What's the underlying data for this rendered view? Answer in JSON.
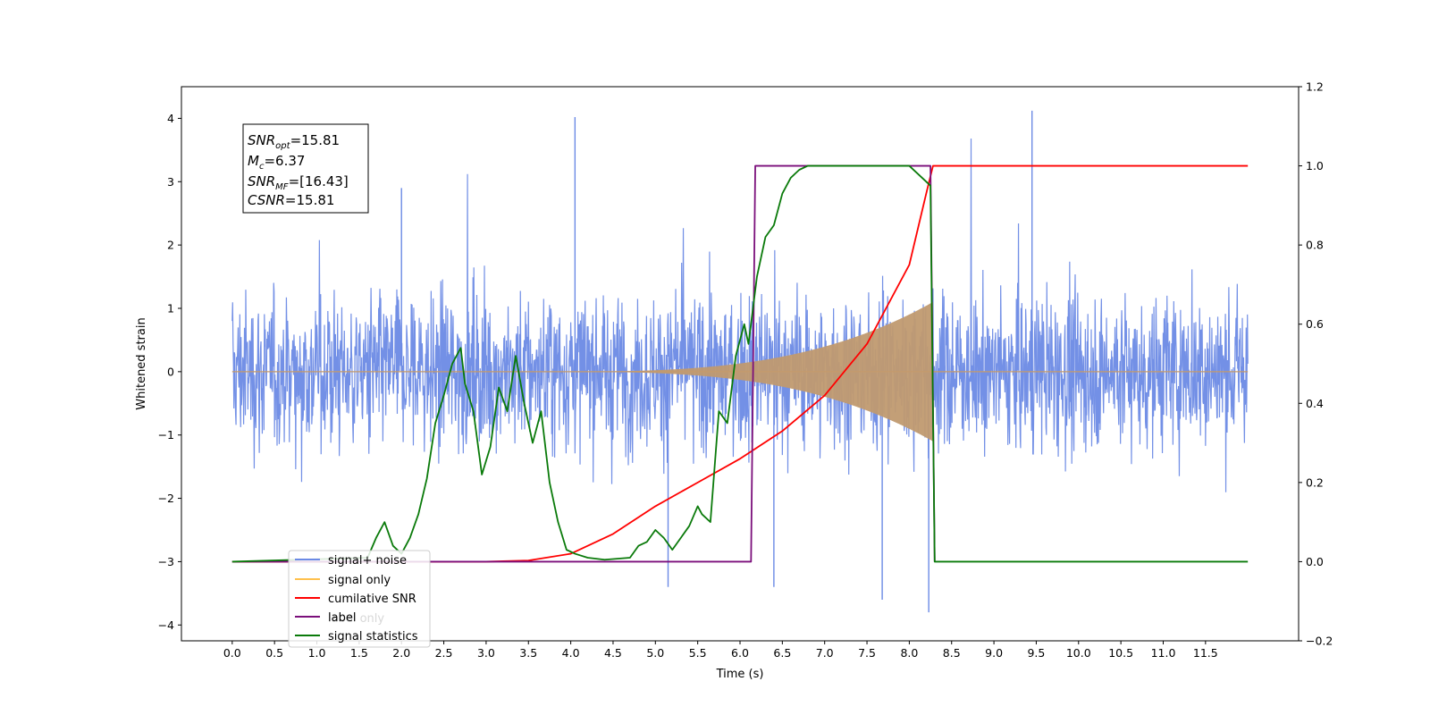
{
  "chart_data": {
    "type": "line",
    "xlabel": "Time (s)",
    "ylabel": "Whitened strain",
    "xlim": [
      -0.6,
      12.6
    ],
    "ylim_left": [
      -4.25,
      4.5
    ],
    "ylim_right": [
      -0.2,
      1.2
    ],
    "x_ticks": [
      "0.0",
      "0.5",
      "1.0",
      "1.5",
      "2.0",
      "2.5",
      "3.0",
      "3.5",
      "4.0",
      "4.5",
      "5.0",
      "5.5",
      "6.0",
      "6.5",
      "7.0",
      "7.5",
      "8.0",
      "8.5",
      "9.0",
      "9.5",
      "10.0",
      "10.5",
      "11.0",
      "11.5"
    ],
    "y_ticks_left": [
      "4",
      "3",
      "2",
      "1",
      "0",
      "−1",
      "−2",
      "−3",
      "−4"
    ],
    "y_ticks_right": [
      "1.2",
      "1.0",
      "0.8",
      "0.6",
      "0.4",
      "0.2",
      "0.0",
      "−0.2"
    ],
    "info_box": {
      "snr_opt": {
        "base": "SNR",
        "sub": "opt",
        "value": "=15.81"
      },
      "mc": {
        "base": "M",
        "sub": "c",
        "value": "=6.37"
      },
      "snr_mf": {
        "base": "SNR",
        "sub": "MF",
        "value": "=[16.43]"
      },
      "csnr": {
        "base": "CSNR",
        "value": "=15.81"
      }
    },
    "legend": {
      "placement": "lower-left",
      "entries": [
        "signal+ noise",
        "signal only",
        "cumilative SNR",
        "label",
        "signal statistics"
      ],
      "hidden_text": "label only"
    },
    "series": [
      {
        "name": "signal+ noise",
        "axis": "left",
        "color": "#6b8ae5",
        "kind": "noise",
        "x_range": [
          0.0,
          12.0
        ],
        "amplitude": 2.3,
        "peaks": [
          4.12,
          -3.8
        ]
      },
      {
        "name": "signal only",
        "axis": "left",
        "color": "#c49a6c",
        "kind": "chirp",
        "start": 3.6,
        "end": 8.28,
        "peak_amplitude": 1.1
      },
      {
        "name": "cumilative SNR",
        "axis": "right",
        "color": "#ff0000",
        "x": [
          0.0,
          3.0,
          3.5,
          4.0,
          4.5,
          5.0,
          5.5,
          6.0,
          6.5,
          7.0,
          7.5,
          8.0,
          8.2,
          8.28,
          12.0
        ],
        "y": [
          0.0,
          0.0,
          0.003,
          0.02,
          0.07,
          0.14,
          0.2,
          0.26,
          0.33,
          0.42,
          0.55,
          0.75,
          0.93,
          1.0,
          1.0
        ]
      },
      {
        "name": "label",
        "axis": "right",
        "color": "#7b0f7b",
        "x": [
          0.0,
          6.13,
          6.18,
          8.25,
          8.3,
          8.3
        ],
        "y": [
          0.0,
          0.0,
          1.0,
          1.0,
          0.0,
          0.0
        ]
      },
      {
        "name": "signal statistics",
        "axis": "right",
        "color": "#0a7a0a",
        "x": [
          0.0,
          1.6,
          1.7,
          1.8,
          1.9,
          2.0,
          2.1,
          2.2,
          2.3,
          2.4,
          2.5,
          2.6,
          2.7,
          2.75,
          2.85,
          2.95,
          3.05,
          3.15,
          3.25,
          3.35,
          3.45,
          3.55,
          3.65,
          3.75,
          3.85,
          3.95,
          4.05,
          4.2,
          4.4,
          4.7,
          4.8,
          4.9,
          5.0,
          5.1,
          5.2,
          5.3,
          5.4,
          5.5,
          5.55,
          5.65,
          5.75,
          5.85,
          5.95,
          6.05,
          6.1,
          6.2,
          6.3,
          6.4,
          6.5,
          6.6,
          6.7,
          6.8,
          7.0,
          7.5,
          8.0,
          8.25,
          8.3,
          12.0
        ],
        "y": [
          0.0,
          0.01,
          0.06,
          0.1,
          0.04,
          0.02,
          0.06,
          0.12,
          0.21,
          0.35,
          0.42,
          0.5,
          0.54,
          0.45,
          0.38,
          0.22,
          0.29,
          0.44,
          0.38,
          0.52,
          0.4,
          0.3,
          0.38,
          0.2,
          0.1,
          0.03,
          0.02,
          0.01,
          0.005,
          0.01,
          0.04,
          0.05,
          0.08,
          0.06,
          0.03,
          0.06,
          0.09,
          0.14,
          0.12,
          0.1,
          0.38,
          0.35,
          0.52,
          0.6,
          0.55,
          0.72,
          0.82,
          0.85,
          0.93,
          0.97,
          0.99,
          1.0,
          1.0,
          1.0,
          1.0,
          0.95,
          0.0,
          0.0
        ]
      }
    ]
  }
}
